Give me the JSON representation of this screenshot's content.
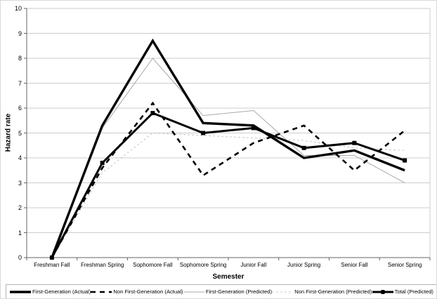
{
  "chart_data": {
    "type": "line",
    "title": "",
    "xlabel": "Semester",
    "ylabel": "Hazard rate",
    "ylim": [
      0,
      10
    ],
    "yticks": [
      0,
      1,
      2,
      3,
      4,
      5,
      6,
      7,
      8,
      9,
      10
    ],
    "grid": "horizontal",
    "legend_position": "bottom",
    "categories": [
      "Freshman Fall",
      "Freshman Spring",
      "Sophomore Fall",
      "Sophomore Spring",
      "Junior Fall",
      "Junior Spring",
      "Senior Fall",
      "Senior Spring"
    ],
    "series": [
      {
        "name": "First-Generation (Actual)",
        "style": "solid-thick",
        "color": "#000000",
        "values": [
          0,
          5.3,
          8.7,
          5.4,
          5.3,
          4.0,
          4.3,
          3.5
        ]
      },
      {
        "name": "Non First-Generation (Actual)",
        "style": "dashed-thick",
        "color": "#000000",
        "values": [
          0,
          3.6,
          6.2,
          3.3,
          4.6,
          5.3,
          3.5,
          5.1
        ]
      },
      {
        "name": "First-Generation (Predicted)",
        "style": "solid-thin",
        "color": "#a8a8a8",
        "values": [
          0,
          5.2,
          8.0,
          5.7,
          5.9,
          4.1,
          4.1,
          3.0
        ]
      },
      {
        "name": "Non First-Generation (Predicted)",
        "style": "dotted-thin",
        "color": "#c4c4c4",
        "values": [
          0,
          3.4,
          5.0,
          4.9,
          4.8,
          4.7,
          4.4,
          4.3
        ]
      },
      {
        "name": "Total (Predicted)",
        "style": "solid-thick-marker",
        "color": "#000000",
        "marker": "square",
        "values": [
          0,
          3.8,
          5.8,
          5.0,
          5.2,
          4.4,
          4.6,
          3.9
        ]
      }
    ],
    "colors": {
      "gridline": "#cccccc",
      "axis": "#666666",
      "plot_right_border": "#cccccc",
      "background": "#ffffff"
    }
  }
}
